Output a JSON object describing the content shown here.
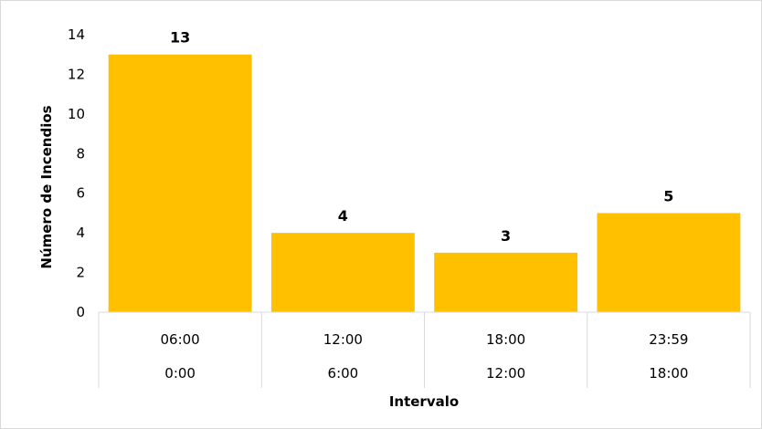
{
  "chart_data": {
    "type": "bar",
    "categories": [
      {
        "upper": "06:00",
        "lower": "0:00"
      },
      {
        "upper": "12:00",
        "lower": "6:00"
      },
      {
        "upper": "18:00",
        "lower": "12:00"
      },
      {
        "upper": "23:59",
        "lower": "18:00"
      }
    ],
    "values": [
      13,
      4,
      3,
      5
    ],
    "data_labels": [
      "13",
      "4",
      "3",
      "5"
    ],
    "title": "",
    "xlabel": "Intervalo",
    "ylabel": "Número de Incendios",
    "ylim": [
      0,
      14
    ],
    "yticks": [
      0,
      2,
      4,
      6,
      8,
      10,
      12,
      14
    ],
    "bar_color": "#FFC000",
    "grid": false,
    "legend": "none"
  }
}
